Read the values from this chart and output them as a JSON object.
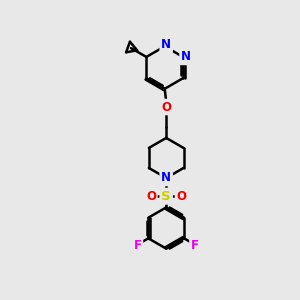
{
  "bg_color": "#e8e8e8",
  "bond_color": "#000000",
  "N_color": "#0000ee",
  "O_color": "#ee0000",
  "S_color": "#cccc00",
  "F_color": "#ee00ee",
  "line_width": 1.8,
  "font_size": 8.5,
  "figsize": [
    3.0,
    3.0
  ],
  "dpi": 100,
  "xlim": [
    0,
    10
  ],
  "ylim": [
    0,
    10
  ]
}
